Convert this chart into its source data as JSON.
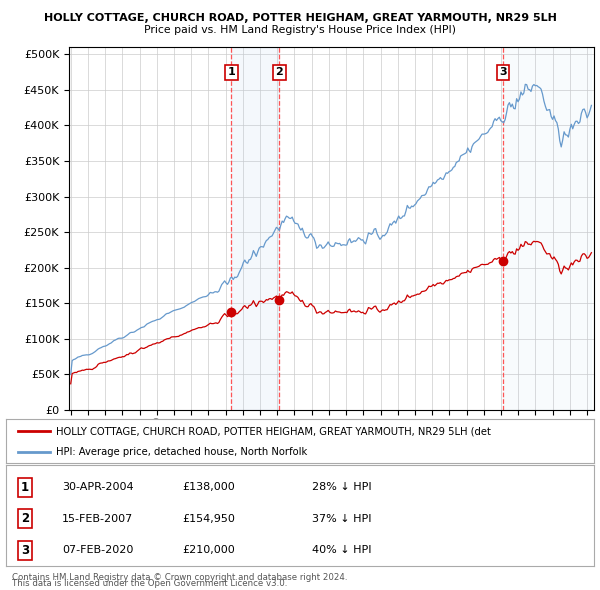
{
  "title1": "HOLLY COTTAGE, CHURCH ROAD, POTTER HEIGHAM, GREAT YARMOUTH, NR29 5LH",
  "title2": "Price paid vs. HM Land Registry's House Price Index (HPI)",
  "sale_labels": [
    "1",
    "2",
    "3"
  ],
  "legend_line1": "HOLLY COTTAGE, CHURCH ROAD, POTTER HEIGHAM, GREAT YARMOUTH, NR29 5LH (det",
  "legend_line2": "HPI: Average price, detached house, North Norfolk",
  "table_rows": [
    [
      "1",
      "30-APR-2004",
      "£138,000",
      "28% ↓ HPI"
    ],
    [
      "2",
      "15-FEB-2007",
      "£154,950",
      "37% ↓ HPI"
    ],
    [
      "3",
      "07-FEB-2020",
      "£210,000",
      "40% ↓ HPI"
    ]
  ],
  "footnote1": "Contains HM Land Registry data © Crown copyright and database right 2024.",
  "footnote2": "This data is licensed under the Open Government Licence v3.0.",
  "hpi_color": "#6699cc",
  "price_color": "#cc0000",
  "vline_color": "#ff4444",
  "background_color": "#ffffff",
  "plot_bg_color": "#ffffff",
  "grid_color": "#cccccc",
  "sale_years": [
    2004.33,
    2007.12,
    2020.1
  ],
  "sale_prices": [
    138000,
    154950,
    210000
  ],
  "yticks": [
    0,
    50000,
    100000,
    150000,
    200000,
    250000,
    300000,
    350000,
    400000,
    450000,
    500000
  ]
}
